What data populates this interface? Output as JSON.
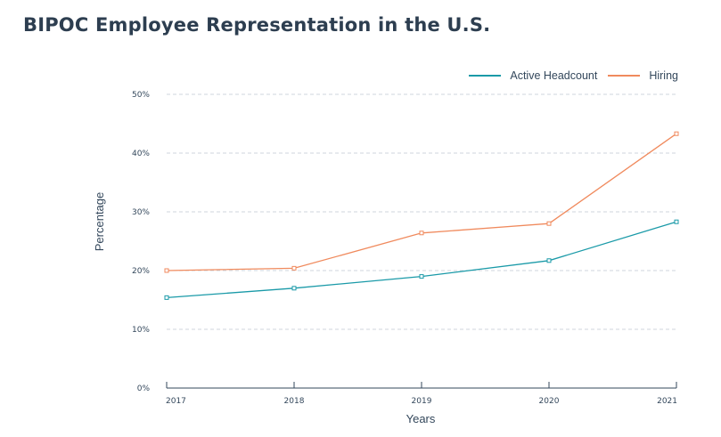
{
  "chart_data": {
    "type": "line",
    "title": "BIPOC Employee Representation in the U.S.",
    "xlabel": "Years",
    "ylabel": "Percentage",
    "categories": [
      "2017",
      "2018",
      "2019",
      "2020",
      "2021"
    ],
    "ylim": [
      0,
      50
    ],
    "yticks": [
      0,
      10,
      20,
      30,
      40,
      50
    ],
    "ytick_labels": [
      "0%",
      "10%",
      "20%",
      "30%",
      "40%",
      "50%"
    ],
    "legend_position": "top-right",
    "grid": true,
    "series": [
      {
        "name": "Active Headcount",
        "color": "#1a9aa8",
        "values": [
          15.4,
          17.0,
          19.0,
          21.7,
          28.3
        ]
      },
      {
        "name": "Hiring",
        "color": "#f08a5d",
        "values": [
          20.0,
          20.4,
          26.4,
          28.0,
          43.3
        ]
      }
    ]
  }
}
